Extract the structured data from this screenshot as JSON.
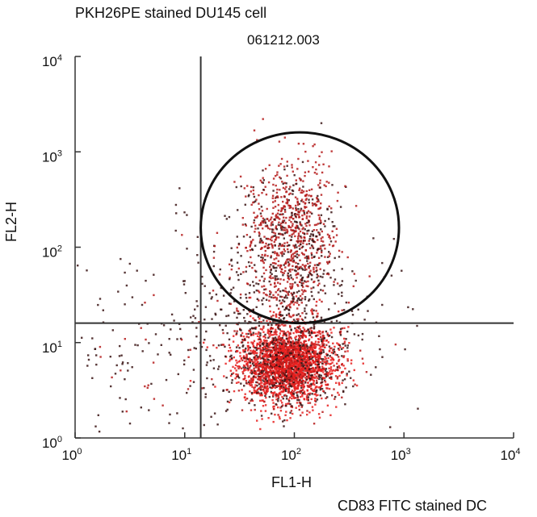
{
  "top_label": "PKH26PE stained DU145 cell",
  "file_id": "061212.003",
  "bottom_label": "CD83 FITC stained DC",
  "colors": {
    "axis": "#333333",
    "gate": "#111111",
    "dense": "#e8201e",
    "mid": "#b51a1a",
    "sparse": "#3a1414"
  },
  "chart_data": {
    "type": "scatter",
    "title": "",
    "xlabel": "FL1-H",
    "ylabel": "FL2-H",
    "xscale": "log",
    "yscale": "log",
    "xlim": [
      1,
      10000
    ],
    "ylim": [
      1,
      10000
    ],
    "x_ticks": [
      {
        "base": "10",
        "exp": "0",
        "value": 1
      },
      {
        "base": "10",
        "exp": "1",
        "value": 10
      },
      {
        "base": "10",
        "exp": "2",
        "value": 100
      },
      {
        "base": "10",
        "exp": "3",
        "value": 1000
      },
      {
        "base": "10",
        "exp": "4",
        "value": 10000
      }
    ],
    "y_ticks": [
      {
        "base": "10",
        "exp": "0",
        "value": 1
      },
      {
        "base": "10",
        "exp": "1",
        "value": 10
      },
      {
        "base": "10",
        "exp": "2",
        "value": 100
      },
      {
        "base": "10",
        "exp": "3",
        "value": 1000
      },
      {
        "base": "10",
        "exp": "4",
        "value": 10000
      }
    ],
    "quadrant_x": 14,
    "quadrant_y": 16,
    "gate": {
      "shape": "ellipse",
      "x_range": [
        14,
        900
      ],
      "y_range": [
        16,
        1600
      ]
    },
    "populations": [
      {
        "name": "",
        "x_center": 85,
        "y_center": 6,
        "x_spread_decades": 0.22,
        "y_spread_decades": 0.2,
        "count": 2600,
        "color": "dense"
      },
      {
        "name": "",
        "x_center": 90,
        "y_center": 120,
        "x_spread_decades": 0.2,
        "y_spread_decades": 0.42,
        "count": 900,
        "color": "mid"
      },
      {
        "name": "",
        "x_center": 70,
        "y_center": 25,
        "x_spread_decades": 0.45,
        "y_spread_decades": 0.5,
        "count": 500,
        "color": "sparse"
      },
      {
        "name": "",
        "x_center": 4,
        "y_center": 8,
        "x_spread_decades": 0.55,
        "y_spread_decades": 0.55,
        "count": 160,
        "color": "sparse"
      }
    ]
  }
}
